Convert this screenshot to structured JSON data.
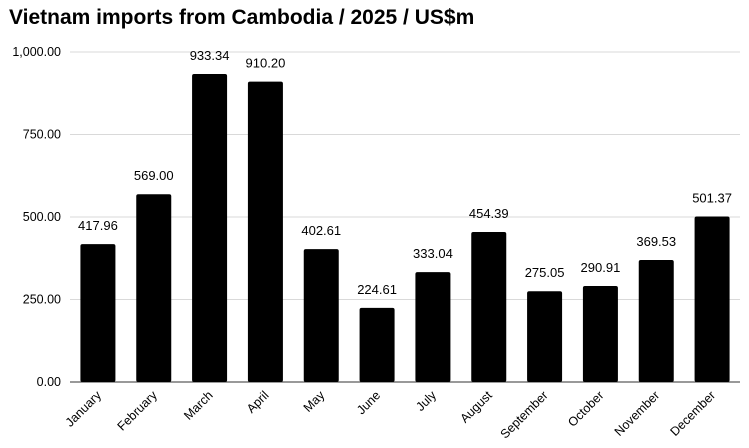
{
  "chart_data": {
    "type": "bar",
    "title": "Vietnam imports from Cambodia / 2025 / US$m",
    "xlabel": "",
    "ylabel": "",
    "categories": [
      "January",
      "February",
      "March",
      "April",
      "May",
      "June",
      "July",
      "August",
      "September",
      "October",
      "November",
      "December"
    ],
    "values": [
      417.96,
      569.0,
      933.34,
      910.2,
      402.61,
      224.61,
      333.04,
      454.39,
      275.05,
      290.91,
      369.53,
      501.37
    ],
    "data_labels": [
      "417.96",
      "569.00",
      "933.34",
      "910.20",
      "402.61",
      "224.61",
      "333.04",
      "454.39",
      "275.05",
      "290.91",
      "369.53",
      "501.37"
    ],
    "ylim": [
      0,
      1000
    ],
    "yticks": [
      0,
      250,
      500,
      750,
      1000
    ],
    "ytick_labels": [
      "0.00",
      "250.00",
      "500.00",
      "750.00",
      "1,000.00"
    ],
    "grid": true,
    "legend": "none",
    "bar_color": "#000000",
    "grid_color": "#d9d9d9"
  }
}
